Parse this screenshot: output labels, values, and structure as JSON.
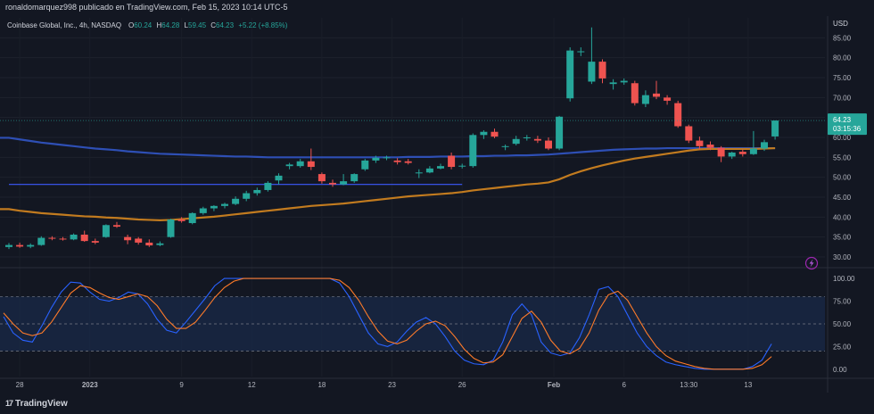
{
  "header": {
    "published_by": "ronaldomarquez998 publicado en TradingView.com, Feb 15, 2023 10:14 UTC-5"
  },
  "footer": {
    "logo_text": "TradingView"
  },
  "colors": {
    "background": "#131722",
    "up": "#26a69a",
    "down": "#ef5350",
    "ma_blue": "#2e4fb5",
    "ma_orange": "#c27b1f",
    "stoch_k": "#2962ff",
    "stoch_d": "#ff7b29",
    "stoch_band": "#1a2a48",
    "price_tag": "#26a69a"
  },
  "chart_data": [
    {
      "type": "candlestick",
      "title": "Coinbase Global, Inc., 4h, NASDAQ",
      "ohlc_label": {
        "o_key": "O",
        "o": "60.24",
        "h_key": "H",
        "h": "64.28",
        "l_key": "L",
        "l": "59.45",
        "c_key": "C",
        "c": "64.23",
        "change": "+5.22 (+8.85%)"
      },
      "currency": "USD",
      "ylim": [
        30,
        90
      ],
      "y_ticks": [
        30,
        35,
        40,
        45,
        50,
        55,
        60,
        65,
        70,
        75,
        80,
        85
      ],
      "y_tick_labels": [
        "30.00",
        "35.00",
        "40.00",
        "45.00",
        "50.00",
        "55.00",
        "60.00",
        "65.00",
        "70.00",
        "75.00",
        "80.00",
        "85.00"
      ],
      "last_price_label": "64.23",
      "countdown_label": "03:15:36",
      "last_price": 64.23,
      "candles": [
        {
          "o": 32.5,
          "h": 33.5,
          "l": 32.0,
          "c": 33.0
        },
        {
          "o": 33.0,
          "h": 33.6,
          "l": 32.3,
          "c": 32.6
        },
        {
          "o": 32.6,
          "h": 33.4,
          "l": 32.2,
          "c": 33.0
        },
        {
          "o": 33.0,
          "h": 35.2,
          "l": 32.8,
          "c": 34.8
        },
        {
          "o": 34.8,
          "h": 35.2,
          "l": 34.2,
          "c": 34.6
        },
        {
          "o": 34.6,
          "h": 35.0,
          "l": 34.1,
          "c": 34.4
        },
        {
          "o": 34.4,
          "h": 35.9,
          "l": 34.2,
          "c": 35.6
        },
        {
          "o": 35.6,
          "h": 36.6,
          "l": 33.8,
          "c": 34.0
        },
        {
          "o": 34.0,
          "h": 34.6,
          "l": 33.2,
          "c": 33.6
        },
        {
          "o": 35.0,
          "h": 38.2,
          "l": 34.8,
          "c": 38.0
        },
        {
          "o": 38.0,
          "h": 38.8,
          "l": 37.3,
          "c": 37.6
        },
        {
          "o": 35.0,
          "h": 35.6,
          "l": 33.2,
          "c": 34.2
        },
        {
          "o": 34.6,
          "h": 35.0,
          "l": 33.1,
          "c": 33.6
        },
        {
          "o": 33.6,
          "h": 34.4,
          "l": 32.5,
          "c": 32.9
        },
        {
          "o": 33.0,
          "h": 33.9,
          "l": 32.7,
          "c": 33.4
        },
        {
          "o": 35.0,
          "h": 39.6,
          "l": 34.8,
          "c": 39.4
        },
        {
          "o": 39.4,
          "h": 40.0,
          "l": 38.6,
          "c": 39.0
        },
        {
          "o": 38.5,
          "h": 41.2,
          "l": 38.2,
          "c": 41.0
        },
        {
          "o": 41.0,
          "h": 42.6,
          "l": 40.6,
          "c": 42.2
        },
        {
          "o": 42.2,
          "h": 43.0,
          "l": 41.5,
          "c": 42.8
        },
        {
          "o": 42.8,
          "h": 43.6,
          "l": 42.2,
          "c": 43.3
        },
        {
          "o": 43.3,
          "h": 45.2,
          "l": 43.0,
          "c": 44.6
        },
        {
          "o": 44.6,
          "h": 46.6,
          "l": 44.0,
          "c": 46.0
        },
        {
          "o": 46.0,
          "h": 47.4,
          "l": 45.4,
          "c": 46.8
        },
        {
          "o": 46.8,
          "h": 49.0,
          "l": 46.4,
          "c": 48.6
        },
        {
          "o": 49.2,
          "h": 51.0,
          "l": 48.2,
          "c": 50.4
        },
        {
          "o": 52.8,
          "h": 53.6,
          "l": 52.0,
          "c": 53.2
        },
        {
          "o": 52.8,
          "h": 54.6,
          "l": 52.4,
          "c": 54.0
        },
        {
          "o": 54.0,
          "h": 57.2,
          "l": 51.8,
          "c": 52.6
        },
        {
          "o": 50.8,
          "h": 51.2,
          "l": 48.4,
          "c": 49.0
        },
        {
          "o": 48.6,
          "h": 49.4,
          "l": 47.6,
          "c": 48.2
        },
        {
          "o": 48.2,
          "h": 50.8,
          "l": 48.0,
          "c": 49.0
        },
        {
          "o": 49.0,
          "h": 51.0,
          "l": 48.6,
          "c": 50.8
        },
        {
          "o": 52.0,
          "h": 54.6,
          "l": 51.6,
          "c": 54.2
        },
        {
          "o": 54.2,
          "h": 55.4,
          "l": 53.6,
          "c": 54.9
        },
        {
          "o": 54.9,
          "h": 55.4,
          "l": 54.3,
          "c": 55.0
        },
        {
          "o": 54.2,
          "h": 54.8,
          "l": 53.2,
          "c": 53.8
        },
        {
          "o": 54.0,
          "h": 54.6,
          "l": 53.2,
          "c": 53.6
        },
        {
          "o": 51.0,
          "h": 52.0,
          "l": 49.8,
          "c": 51.2
        },
        {
          "o": 51.2,
          "h": 52.8,
          "l": 51.0,
          "c": 52.2
        },
        {
          "o": 52.2,
          "h": 53.4,
          "l": 52.0,
          "c": 52.8
        },
        {
          "o": 55.4,
          "h": 56.2,
          "l": 52.0,
          "c": 52.6
        },
        {
          "o": 52.8,
          "h": 53.4,
          "l": 52.2,
          "c": 52.9
        },
        {
          "o": 52.8,
          "h": 61.0,
          "l": 52.4,
          "c": 60.6
        },
        {
          "o": 60.6,
          "h": 61.8,
          "l": 59.6,
          "c": 61.4
        },
        {
          "o": 61.4,
          "h": 62.2,
          "l": 59.8,
          "c": 60.2
        },
        {
          "o": 57.6,
          "h": 58.2,
          "l": 56.8,
          "c": 57.8
        },
        {
          "o": 58.4,
          "h": 60.4,
          "l": 58.0,
          "c": 59.6
        },
        {
          "o": 59.8,
          "h": 60.6,
          "l": 59.2,
          "c": 60.0
        },
        {
          "o": 59.6,
          "h": 60.4,
          "l": 58.6,
          "c": 59.2
        },
        {
          "o": 59.2,
          "h": 60.0,
          "l": 56.8,
          "c": 57.2
        },
        {
          "o": 57.2,
          "h": 65.4,
          "l": 56.8,
          "c": 65.2
        },
        {
          "o": 69.8,
          "h": 82.6,
          "l": 69.0,
          "c": 81.8
        },
        {
          "o": 81.4,
          "h": 82.6,
          "l": 80.4,
          "c": 81.6
        },
        {
          "o": 74.0,
          "h": 87.6,
          "l": 73.4,
          "c": 79.0
        },
        {
          "o": 79.0,
          "h": 79.6,
          "l": 73.6,
          "c": 74.8
        },
        {
          "o": 73.4,
          "h": 74.6,
          "l": 72.0,
          "c": 73.8
        },
        {
          "o": 73.8,
          "h": 74.8,
          "l": 73.2,
          "c": 74.2
        },
        {
          "o": 73.6,
          "h": 74.2,
          "l": 68.0,
          "c": 68.6
        },
        {
          "o": 68.4,
          "h": 71.8,
          "l": 67.6,
          "c": 70.6
        },
        {
          "o": 71.0,
          "h": 74.2,
          "l": 69.6,
          "c": 70.2
        },
        {
          "o": 70.0,
          "h": 70.6,
          "l": 68.2,
          "c": 69.2
        },
        {
          "o": 68.6,
          "h": 69.2,
          "l": 62.4,
          "c": 62.8
        },
        {
          "o": 62.8,
          "h": 63.2,
          "l": 58.6,
          "c": 59.2
        },
        {
          "o": 59.2,
          "h": 60.2,
          "l": 57.0,
          "c": 57.8
        },
        {
          "o": 58.2,
          "h": 59.0,
          "l": 56.8,
          "c": 57.4
        },
        {
          "o": 57.4,
          "h": 57.8,
          "l": 53.8,
          "c": 55.2
        },
        {
          "o": 55.2,
          "h": 56.4,
          "l": 54.6,
          "c": 56.2
        },
        {
          "o": 56.4,
          "h": 57.0,
          "l": 55.2,
          "c": 55.8
        },
        {
          "o": 55.8,
          "h": 61.6,
          "l": 55.6,
          "c": 57.2
        },
        {
          "o": 57.2,
          "h": 59.4,
          "l": 56.6,
          "c": 58.8
        },
        {
          "o": 60.24,
          "h": 64.28,
          "l": 59.45,
          "c": 64.23
        }
      ],
      "moving_average_long": [
        59.9,
        59.5,
        59.1,
        58.7,
        58.4,
        58.1,
        57.8,
        57.5,
        57.2,
        57.0,
        56.8,
        56.5,
        56.3,
        56.1,
        55.9,
        55.8,
        55.7,
        55.6,
        55.5,
        55.4,
        55.3,
        55.2,
        55.2,
        55.1,
        55.0,
        55.0,
        55.0,
        55.0,
        55.0,
        55.0,
        55.0,
        55.0,
        55.0,
        55.0,
        55.0,
        55.0,
        55.0,
        55.1,
        55.1,
        55.1,
        55.2,
        55.2,
        55.2,
        55.3,
        55.3,
        55.4,
        55.4,
        55.5,
        55.5,
        55.6,
        55.7,
        55.9,
        56.1,
        56.3,
        56.5,
        56.7,
        56.9,
        57.0,
        57.1,
        57.2,
        57.2,
        57.3,
        57.3,
        57.3,
        57.3,
        57.3,
        57.3,
        57.3,
        57.3,
        57.3,
        57.3,
        57.3
      ],
      "moving_average_short": [
        42.0,
        41.6,
        41.3,
        41.0,
        40.8,
        40.6,
        40.4,
        40.2,
        40.1,
        39.9,
        39.8,
        39.6,
        39.4,
        39.3,
        39.2,
        39.3,
        39.5,
        39.7,
        39.9,
        40.1,
        40.4,
        40.7,
        41.0,
        41.3,
        41.6,
        41.9,
        42.2,
        42.5,
        42.8,
        43.0,
        43.2,
        43.4,
        43.7,
        44.0,
        44.3,
        44.6,
        44.9,
        45.2,
        45.4,
        45.6,
        45.8,
        46.0,
        46.3,
        46.7,
        47.0,
        47.3,
        47.6,
        47.9,
        48.2,
        48.4,
        48.7,
        49.5,
        50.6,
        51.5,
        52.3,
        53.0,
        53.6,
        54.2,
        54.7,
        55.1,
        55.5,
        55.9,
        56.3,
        56.7,
        57.0,
        57.1,
        57.1,
        57.1,
        57.1,
        57.1,
        57.2,
        57.3
      ],
      "horizontal_line": {
        "value": 48.2,
        "from_index": 0,
        "to_index": 42
      }
    },
    {
      "type": "line",
      "title": "",
      "ylim": [
        -8,
        106
      ],
      "y_ticks": [
        0,
        25,
        50,
        75,
        100
      ],
      "y_tick_labels": [
        "0.00",
        "25.00",
        "50.00",
        "75.00",
        "100.00"
      ],
      "band": [
        20,
        80
      ],
      "x_tick_labels": [
        {
          "label": "28",
          "index": 1
        },
        {
          "label": "2023",
          "index": 7.5
        },
        {
          "label": "9",
          "index": 16
        },
        {
          "label": "12",
          "index": 22.5
        },
        {
          "label": "18",
          "index": 29
        },
        {
          "label": "23",
          "index": 35.5
        },
        {
          "label": "26",
          "index": 42
        },
        {
          "label": "Feb",
          "index": 50.5
        },
        {
          "label": "6",
          "index": 57
        },
        {
          "label": "13:30",
          "index": 63
        },
        {
          "label": "13",
          "index": 68.5
        }
      ],
      "series": [
        {
          "values": [
            58,
            40,
            32,
            30,
            48,
            68,
            85,
            96,
            95,
            85,
            77,
            75,
            79,
            85,
            83,
            72,
            55,
            43,
            40,
            52,
            65,
            78,
            92,
            100,
            100,
            100,
            100,
            100,
            100,
            100,
            100,
            100,
            100,
            100,
            100,
            95,
            80,
            60,
            40,
            28,
            25,
            30,
            42,
            52,
            57,
            50,
            36,
            20,
            10,
            6,
            5,
            10,
            30,
            60,
            72,
            60,
            30,
            18,
            15,
            18,
            35,
            60,
            88,
            91,
            80,
            60,
            40,
            25,
            15,
            8,
            5,
            3,
            1,
            0,
            0,
            0,
            0,
            0,
            3,
            10,
            28
          ]
        },
        {
          "values": [
            62,
            50,
            40,
            37,
            40,
            52,
            68,
            84,
            92,
            90,
            84,
            79,
            77,
            80,
            83,
            80,
            70,
            55,
            45,
            45,
            52,
            65,
            79,
            90,
            97,
            100,
            100,
            100,
            100,
            100,
            100,
            100,
            100,
            100,
            100,
            98,
            90,
            76,
            58,
            42,
            31,
            28,
            32,
            42,
            50,
            53,
            48,
            36,
            22,
            12,
            7,
            8,
            16,
            36,
            56,
            64,
            52,
            32,
            20,
            17,
            23,
            40,
            65,
            82,
            86,
            76,
            58,
            40,
            25,
            15,
            9,
            6,
            3,
            1,
            0,
            0,
            0,
            0,
            1,
            5,
            14
          ]
        }
      ]
    }
  ]
}
